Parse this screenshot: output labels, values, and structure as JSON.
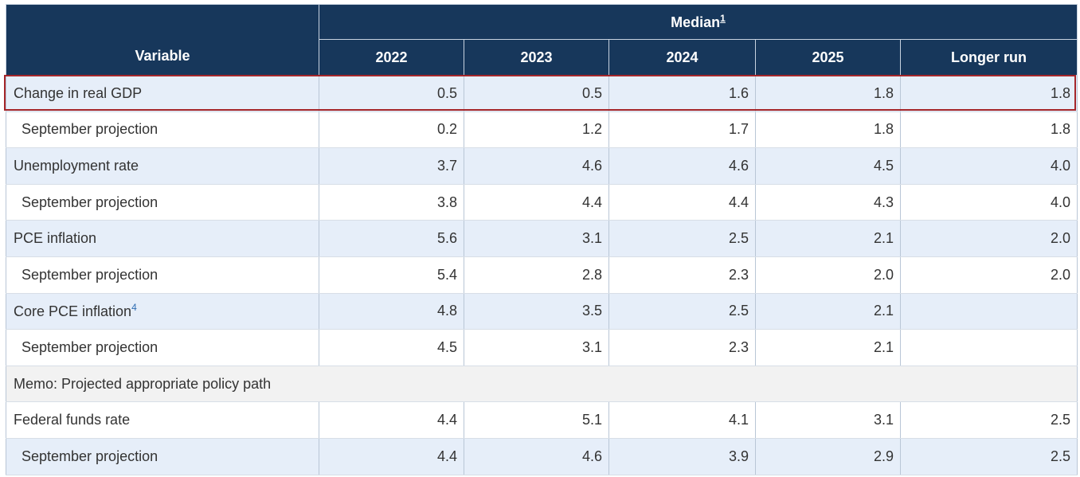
{
  "chart_data": {
    "type": "table",
    "header": {
      "variable_label": "Variable",
      "group_label": "Median",
      "group_footnote": "1",
      "columns": [
        "2022",
        "2023",
        "2024",
        "2025",
        "Longer run"
      ]
    },
    "rows": [
      {
        "label": "Change in real GDP",
        "footnote": "",
        "kind": "main",
        "values": [
          "0.5",
          "0.5",
          "1.6",
          "1.8",
          "1.8"
        ]
      },
      {
        "label": "September projection",
        "footnote": "",
        "kind": "sub",
        "values": [
          "0.2",
          "1.2",
          "1.7",
          "1.8",
          "1.8"
        ]
      },
      {
        "label": "Unemployment rate",
        "footnote": "",
        "kind": "main",
        "values": [
          "3.7",
          "4.6",
          "4.6",
          "4.5",
          "4.0"
        ]
      },
      {
        "label": "September projection",
        "footnote": "",
        "kind": "sub",
        "values": [
          "3.8",
          "4.4",
          "4.4",
          "4.3",
          "4.0"
        ]
      },
      {
        "label": "PCE inflation",
        "footnote": "",
        "kind": "main",
        "values": [
          "5.6",
          "3.1",
          "2.5",
          "2.1",
          "2.0"
        ]
      },
      {
        "label": "September projection",
        "footnote": "",
        "kind": "sub",
        "values": [
          "5.4",
          "2.8",
          "2.3",
          "2.0",
          "2.0"
        ]
      },
      {
        "label": "Core PCE inflation",
        "footnote": "4",
        "kind": "main",
        "values": [
          "4.8",
          "3.5",
          "2.5",
          "2.1",
          ""
        ]
      },
      {
        "label": "September projection",
        "footnote": "",
        "kind": "sub",
        "values": [
          "4.5",
          "3.1",
          "2.3",
          "2.1",
          ""
        ]
      },
      {
        "label": "Memo: Projected appropriate policy path",
        "footnote": "",
        "kind": "memo",
        "values": []
      },
      {
        "label": "Federal funds rate",
        "footnote": "",
        "kind": "main-white",
        "values": [
          "4.4",
          "5.1",
          "4.1",
          "3.1",
          "2.5"
        ]
      },
      {
        "label": "September projection",
        "footnote": "",
        "kind": "sub-blue",
        "values": [
          "4.4",
          "4.6",
          "3.9",
          "2.9",
          "2.5"
        ]
      }
    ],
    "highlighted_row": 0,
    "colors": {
      "header_bg": "#17375b",
      "header_text": "#ffffff",
      "row_blue": "#e6eef9",
      "row_white": "#ffffff",
      "memo_bg": "#f2f2f2",
      "highlight_border": "#a5262a"
    }
  }
}
